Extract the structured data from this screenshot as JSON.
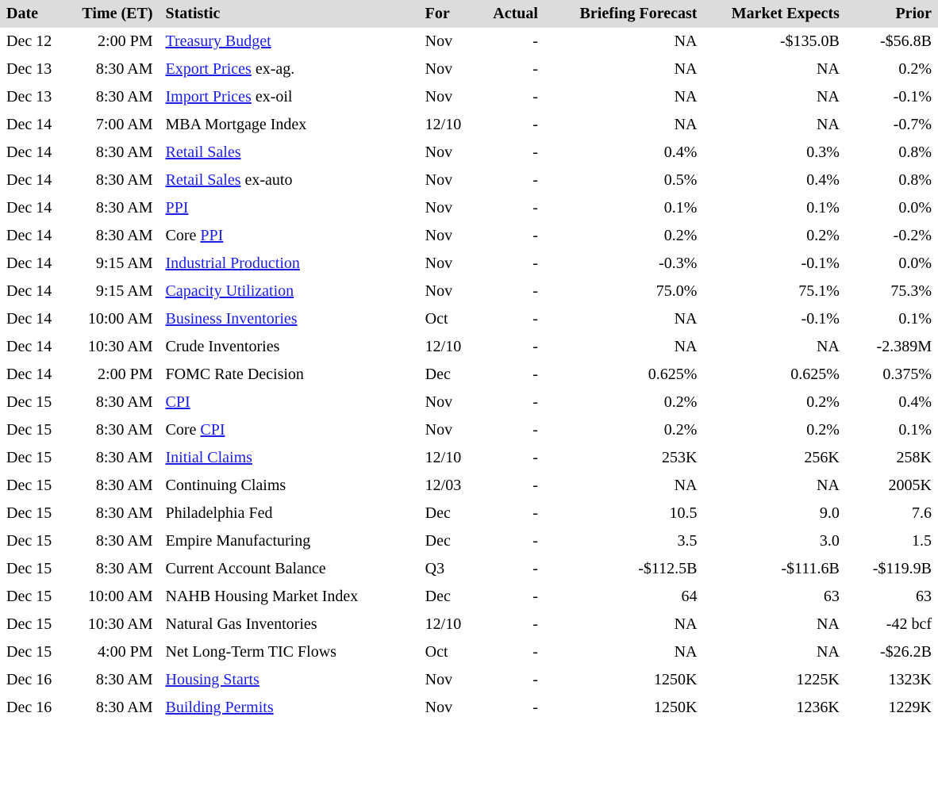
{
  "columns": [
    {
      "key": "date",
      "label": "Date",
      "align": "l"
    },
    {
      "key": "time",
      "label": "Time (ET)",
      "align": "r"
    },
    {
      "key": "stat",
      "label": "Statistic",
      "align": "l"
    },
    {
      "key": "for",
      "label": "For",
      "align": "l"
    },
    {
      "key": "actual",
      "label": "Actual",
      "align": "r"
    },
    {
      "key": "briefing",
      "label": "Briefing Forecast",
      "align": "r"
    },
    {
      "key": "market",
      "label": "Market Expects",
      "align": "r"
    },
    {
      "key": "prior",
      "label": "Prior",
      "align": "r"
    }
  ],
  "link_color": "#1c1ee8",
  "header_bg": "#dcdcdc",
  "rows": [
    {
      "date": "Dec 12",
      "time": "2:00 PM",
      "stat_pre": "",
      "stat_link": "Treasury Budget",
      "stat_post": "",
      "for": "Nov",
      "actual": "-",
      "briefing": "NA",
      "market": "-$135.0B",
      "prior": "-$56.8B"
    },
    {
      "date": "Dec 13",
      "time": "8:30 AM",
      "stat_pre": "",
      "stat_link": "Export Prices",
      "stat_post": " ex-ag.",
      "for": "Nov",
      "actual": "-",
      "briefing": "NA",
      "market": "NA",
      "prior": "0.2%"
    },
    {
      "date": "Dec 13",
      "time": "8:30 AM",
      "stat_pre": "",
      "stat_link": "Import Prices",
      "stat_post": " ex-oil",
      "for": "Nov",
      "actual": "-",
      "briefing": "NA",
      "market": "NA",
      "prior": "-0.1%"
    },
    {
      "date": "Dec 14",
      "time": "7:00 AM",
      "stat_pre": "MBA Mortgage Index",
      "stat_link": "",
      "stat_post": "",
      "for": "12/10",
      "actual": "-",
      "briefing": "NA",
      "market": "NA",
      "prior": "-0.7%"
    },
    {
      "date": "Dec 14",
      "time": "8:30 AM",
      "stat_pre": "",
      "stat_link": "Retail Sales",
      "stat_post": "",
      "for": "Nov",
      "actual": "-",
      "briefing": "0.4%",
      "market": "0.3%",
      "prior": "0.8%"
    },
    {
      "date": "Dec 14",
      "time": "8:30 AM",
      "stat_pre": "",
      "stat_link": "Retail Sales",
      "stat_post": " ex-auto",
      "for": "Nov",
      "actual": "-",
      "briefing": "0.5%",
      "market": "0.4%",
      "prior": "0.8%"
    },
    {
      "date": "Dec 14",
      "time": "8:30 AM",
      "stat_pre": "",
      "stat_link": "PPI",
      "stat_post": "",
      "for": "Nov",
      "actual": "-",
      "briefing": "0.1%",
      "market": "0.1%",
      "prior": "0.0%"
    },
    {
      "date": "Dec 14",
      "time": "8:30 AM",
      "stat_pre": "Core ",
      "stat_link": "PPI",
      "stat_post": "",
      "for": "Nov",
      "actual": "-",
      "briefing": "0.2%",
      "market": "0.2%",
      "prior": "-0.2%"
    },
    {
      "date": "Dec 14",
      "time": "9:15 AM",
      "stat_pre": "",
      "stat_link": "Industrial Production",
      "stat_post": "",
      "for": "Nov",
      "actual": "-",
      "briefing": "-0.3%",
      "market": "-0.1%",
      "prior": "0.0%"
    },
    {
      "date": "Dec 14",
      "time": "9:15 AM",
      "stat_pre": "",
      "stat_link": "Capacity Utilization",
      "stat_post": "",
      "for": "Nov",
      "actual": "-",
      "briefing": "75.0%",
      "market": "75.1%",
      "prior": "75.3%"
    },
    {
      "date": "Dec 14",
      "time": "10:00 AM",
      "stat_pre": "",
      "stat_link": "Business Inventories",
      "stat_post": "",
      "for": "Oct",
      "actual": "-",
      "briefing": "NA",
      "market": "-0.1%",
      "prior": "0.1%"
    },
    {
      "date": "Dec 14",
      "time": "10:30 AM",
      "stat_pre": "Crude Inventories",
      "stat_link": "",
      "stat_post": "",
      "for": "12/10",
      "actual": "-",
      "briefing": "NA",
      "market": "NA",
      "prior": "-2.389M"
    },
    {
      "date": "Dec 14",
      "time": "2:00 PM",
      "stat_pre": "FOMC Rate Decision",
      "stat_link": "",
      "stat_post": "",
      "for": "Dec",
      "actual": "-",
      "briefing": "0.625%",
      "market": "0.625%",
      "prior": "0.375%"
    },
    {
      "date": "Dec 15",
      "time": "8:30 AM",
      "stat_pre": "",
      "stat_link": "CPI",
      "stat_post": "",
      "for": "Nov",
      "actual": "-",
      "briefing": "0.2%",
      "market": "0.2%",
      "prior": "0.4%"
    },
    {
      "date": "Dec 15",
      "time": "8:30 AM",
      "stat_pre": "Core ",
      "stat_link": "CPI",
      "stat_post": "",
      "for": "Nov",
      "actual": "-",
      "briefing": "0.2%",
      "market": "0.2%",
      "prior": "0.1%"
    },
    {
      "date": "Dec 15",
      "time": "8:30 AM",
      "stat_pre": "",
      "stat_link": "Initial Claims",
      "stat_post": "",
      "for": "12/10",
      "actual": "-",
      "briefing": "253K",
      "market": "256K",
      "prior": "258K"
    },
    {
      "date": "Dec 15",
      "time": "8:30 AM",
      "stat_pre": "Continuing Claims",
      "stat_link": "",
      "stat_post": "",
      "for": "12/03",
      "actual": "-",
      "briefing": "NA",
      "market": "NA",
      "prior": "2005K"
    },
    {
      "date": "Dec 15",
      "time": "8:30 AM",
      "stat_pre": "Philadelphia Fed",
      "stat_link": "",
      "stat_post": "",
      "for": "Dec",
      "actual": "-",
      "briefing": "10.5",
      "market": "9.0",
      "prior": "7.6"
    },
    {
      "date": "Dec 15",
      "time": "8:30 AM",
      "stat_pre": "Empire Manufacturing",
      "stat_link": "",
      "stat_post": "",
      "for": "Dec",
      "actual": "-",
      "briefing": "3.5",
      "market": "3.0",
      "prior": "1.5"
    },
    {
      "date": "Dec 15",
      "time": "8:30 AM",
      "stat_pre": "Current Account Balance",
      "stat_link": "",
      "stat_post": "",
      "for": "Q3",
      "actual": "-",
      "briefing": "-$112.5B",
      "market": "-$111.6B",
      "prior": "-$119.9B"
    },
    {
      "date": "Dec 15",
      "time": "10:00 AM",
      "stat_pre": "NAHB Housing Market Index",
      "stat_link": "",
      "stat_post": "",
      "for": "Dec",
      "actual": "-",
      "briefing": "64",
      "market": "63",
      "prior": "63"
    },
    {
      "date": "Dec 15",
      "time": "10:30 AM",
      "stat_pre": "Natural Gas Inventories",
      "stat_link": "",
      "stat_post": "",
      "for": "12/10",
      "actual": "-",
      "briefing": "NA",
      "market": "NA",
      "prior": "-42 bcf"
    },
    {
      "date": "Dec 15",
      "time": "4:00 PM",
      "stat_pre": "Net Long-Term TIC Flows",
      "stat_link": "",
      "stat_post": "",
      "for": "Oct",
      "actual": "-",
      "briefing": "NA",
      "market": "NA",
      "prior": "-$26.2B"
    },
    {
      "date": "Dec 16",
      "time": "8:30 AM",
      "stat_pre": "",
      "stat_link": "Housing Starts",
      "stat_post": "",
      "for": "Nov",
      "actual": "-",
      "briefing": "1250K",
      "market": "1225K",
      "prior": "1323K"
    },
    {
      "date": "Dec 16",
      "time": "8:30 AM",
      "stat_pre": "",
      "stat_link": "Building Permits",
      "stat_post": "",
      "for": "Nov",
      "actual": "-",
      "briefing": "1250K",
      "market": "1236K",
      "prior": "1229K"
    }
  ]
}
